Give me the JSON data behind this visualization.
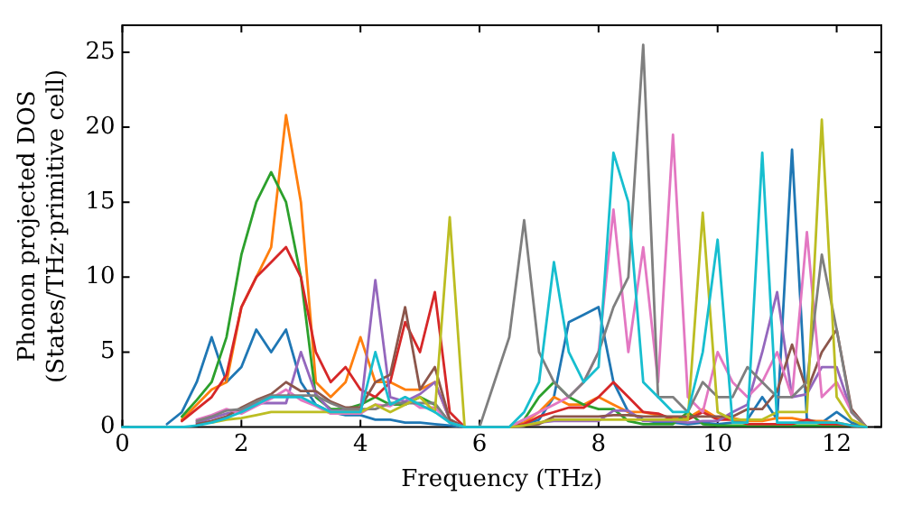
{
  "chart_data": {
    "type": "line",
    "xlabel": "Frequency (THz)",
    "ylabel": "Phonon projected DOS\n(States/THz·primitive cell)",
    "xlim": [
      0,
      12.75
    ],
    "ylim": [
      0,
      26.8
    ],
    "xticks": [
      0,
      2,
      4,
      6,
      8,
      10,
      12
    ],
    "yticks": [
      0,
      5,
      10,
      15,
      20,
      25
    ],
    "line_style": "solid",
    "x": [
      0,
      0.25,
      0.5,
      0.75,
      1,
      1.25,
      1.5,
      1.75,
      2,
      2.25,
      2.5,
      2.75,
      3,
      3.25,
      3.5,
      3.75,
      4,
      4.25,
      4.5,
      4.75,
      5,
      5.25,
      5.5,
      5.75,
      6,
      6.25,
      6.5,
      6.75,
      7,
      7.25,
      7.5,
      7.75,
      8,
      8.25,
      8.5,
      8.75,
      9,
      9.25,
      9.5,
      9.75,
      10,
      10.25,
      10.5,
      10.75,
      11,
      11.25,
      11.5,
      11.75,
      12,
      12.25,
      12.5
    ],
    "series": [
      {
        "color": "#1f77b4",
        "values": [
          null,
          null,
          null,
          0.2,
          1,
          3,
          6,
          3,
          4,
          6.5,
          5,
          6.5,
          3,
          1.5,
          1,
          0.8,
          0.8,
          0.5,
          0.5,
          0.3,
          0.3,
          0.2,
          0.1,
          0,
          null,
          null,
          0,
          0.2,
          0.5,
          2,
          7,
          7.5,
          8,
          3,
          1,
          0.5,
          0.3,
          0.3,
          0.2,
          0.3,
          0.2,
          0.3,
          0.5,
          2,
          0.5,
          18.5,
          0.5,
          0.3,
          1,
          0.3,
          0
        ]
      },
      {
        "color": "#ff7f0e",
        "values": [
          null,
          null,
          null,
          null,
          0.5,
          1.5,
          2.5,
          3,
          8,
          10,
          12,
          20.8,
          15,
          3,
          2,
          3,
          6,
          3,
          3,
          2.5,
          2.5,
          3,
          0.5,
          0,
          null,
          null,
          0,
          0.3,
          1,
          2,
          1.5,
          1.5,
          2,
          1.5,
          1,
          1,
          0.8,
          0.6,
          0.6,
          1.2,
          0.6,
          0.6,
          0.4,
          0.4,
          0.6,
          0.6,
          0.4,
          0.4,
          0.3,
          0.1,
          0
        ]
      },
      {
        "color": "#2ca02c",
        "values": [
          null,
          null,
          null,
          null,
          0.7,
          1.8,
          3,
          6,
          11.5,
          15,
          17,
          15,
          10,
          2,
          1.2,
          1.2,
          1.5,
          2,
          1.5,
          1.5,
          2,
          1.5,
          0.3,
          0,
          null,
          null,
          0,
          0.5,
          2,
          3,
          2,
          1.5,
          1.2,
          1.2,
          0.4,
          0.2,
          0.2,
          0.2,
          1,
          0.2,
          0.1,
          0.1,
          0.1,
          0.1,
          0.1,
          0.1,
          0.1,
          0.1,
          0.1,
          0.1,
          0
        ]
      },
      {
        "color": "#d62728",
        "values": [
          null,
          null,
          null,
          null,
          0.4,
          1.2,
          2,
          3.5,
          8,
          10,
          11,
          12,
          10,
          5,
          3,
          4,
          2.5,
          2,
          3,
          7,
          5,
          9,
          1,
          0,
          null,
          null,
          0,
          0.2,
          0.7,
          1,
          1.3,
          1.3,
          2,
          3,
          2,
          1,
          0.9,
          0.5,
          0.5,
          1,
          0.5,
          0.5,
          0.2,
          0.2,
          0.2,
          0.2,
          0.5,
          0.2,
          0.2,
          0.1,
          0
        ]
      },
      {
        "color": "#9467bd",
        "values": [
          null,
          null,
          null,
          null,
          null,
          0.3,
          0.6,
          0.9,
          1.1,
          1.6,
          1.6,
          1.6,
          5,
          2.2,
          1.1,
          1.1,
          1.1,
          9.8,
          2,
          1.7,
          2.2,
          3,
          0.5,
          0,
          null,
          null,
          0,
          0.1,
          0.3,
          0.4,
          0.4,
          0.4,
          0.4,
          1.1,
          1.1,
          0.4,
          0.4,
          0.4,
          0.3,
          0.4,
          0.4,
          1,
          1.5,
          5,
          9,
          2,
          2.2,
          4,
          4,
          1,
          0
        ]
      },
      {
        "color": "#8c564b",
        "values": [
          null,
          null,
          null,
          null,
          null,
          0.2,
          0.4,
          0.7,
          1.3,
          1.8,
          2.2,
          3,
          2.4,
          2.4,
          1.7,
          1.3,
          1.3,
          3,
          3.5,
          8,
          2.5,
          4,
          0.5,
          0,
          null,
          null,
          0,
          0.1,
          0.2,
          0.7,
          0.7,
          0.7,
          0.7,
          0.8,
          0.8,
          0.7,
          0.7,
          0.7,
          0.7,
          0.7,
          0.7,
          0.7,
          1.2,
          1.2,
          2.4,
          5.5,
          2.4,
          5,
          6.5,
          1.2,
          0
        ]
      },
      {
        "color": "#e377c2",
        "values": [
          null,
          null,
          null,
          null,
          null,
          0.5,
          0.8,
          1.2,
          0.9,
          1.4,
          1.9,
          2.5,
          1.8,
          1.4,
          0.9,
          0.9,
          0.9,
          1.5,
          1.4,
          2,
          1.3,
          1.3,
          0.3,
          0,
          null,
          null,
          0,
          0.5,
          1,
          1.5,
          2,
          3,
          5,
          14.5,
          5,
          12,
          3,
          19.5,
          2,
          1,
          5,
          3,
          2,
          3,
          5,
          2,
          13,
          2,
          3,
          1,
          0
        ]
      },
      {
        "color": "#7f7f7f",
        "values": [
          null,
          null,
          null,
          null,
          null,
          0.4,
          0.7,
          1.1,
          1.2,
          1.7,
          2.1,
          2.1,
          2.1,
          2.1,
          1.6,
          1.2,
          1.2,
          1.2,
          1.6,
          1.6,
          1.6,
          1.6,
          0.3,
          0,
          0,
          3,
          6,
          13.8,
          5,
          3,
          2,
          3,
          5,
          8,
          10,
          25.5,
          2,
          2,
          1,
          3,
          2,
          2,
          4,
          3,
          2,
          2,
          3,
          11.5,
          6.5,
          1,
          0
        ]
      },
      {
        "color": "#bcbd22",
        "values": [
          null,
          null,
          null,
          null,
          null,
          null,
          0.3,
          0.5,
          0.6,
          0.8,
          1,
          1,
          1,
          1,
          1,
          1,
          1,
          1.5,
          1,
          1.5,
          2,
          1,
          14,
          0,
          null,
          null,
          0,
          0.1,
          0.3,
          0.5,
          0.5,
          0.5,
          0.5,
          0.5,
          0.5,
          0.5,
          0.5,
          0.5,
          0.5,
          14.3,
          1,
          0.5,
          0.5,
          0.5,
          1,
          1,
          1,
          20.5,
          2,
          0.5,
          0
        ]
      },
      {
        "color": "#17becf",
        "values": [
          0,
          0,
          0,
          0,
          0,
          0.1,
          0.3,
          0.6,
          1,
          1.5,
          2,
          2,
          2,
          1.5,
          1,
          1,
          1,
          5,
          1.5,
          2,
          1.5,
          1,
          0.3,
          0,
          0,
          0,
          0,
          1,
          3,
          11,
          5,
          3,
          4,
          18.3,
          15,
          3,
          2,
          1,
          1,
          5,
          12.5,
          0.3,
          0.3,
          18.3,
          0.3,
          0.3,
          0.3,
          0.3,
          0.3,
          0.1,
          0
        ]
      }
    ]
  }
}
